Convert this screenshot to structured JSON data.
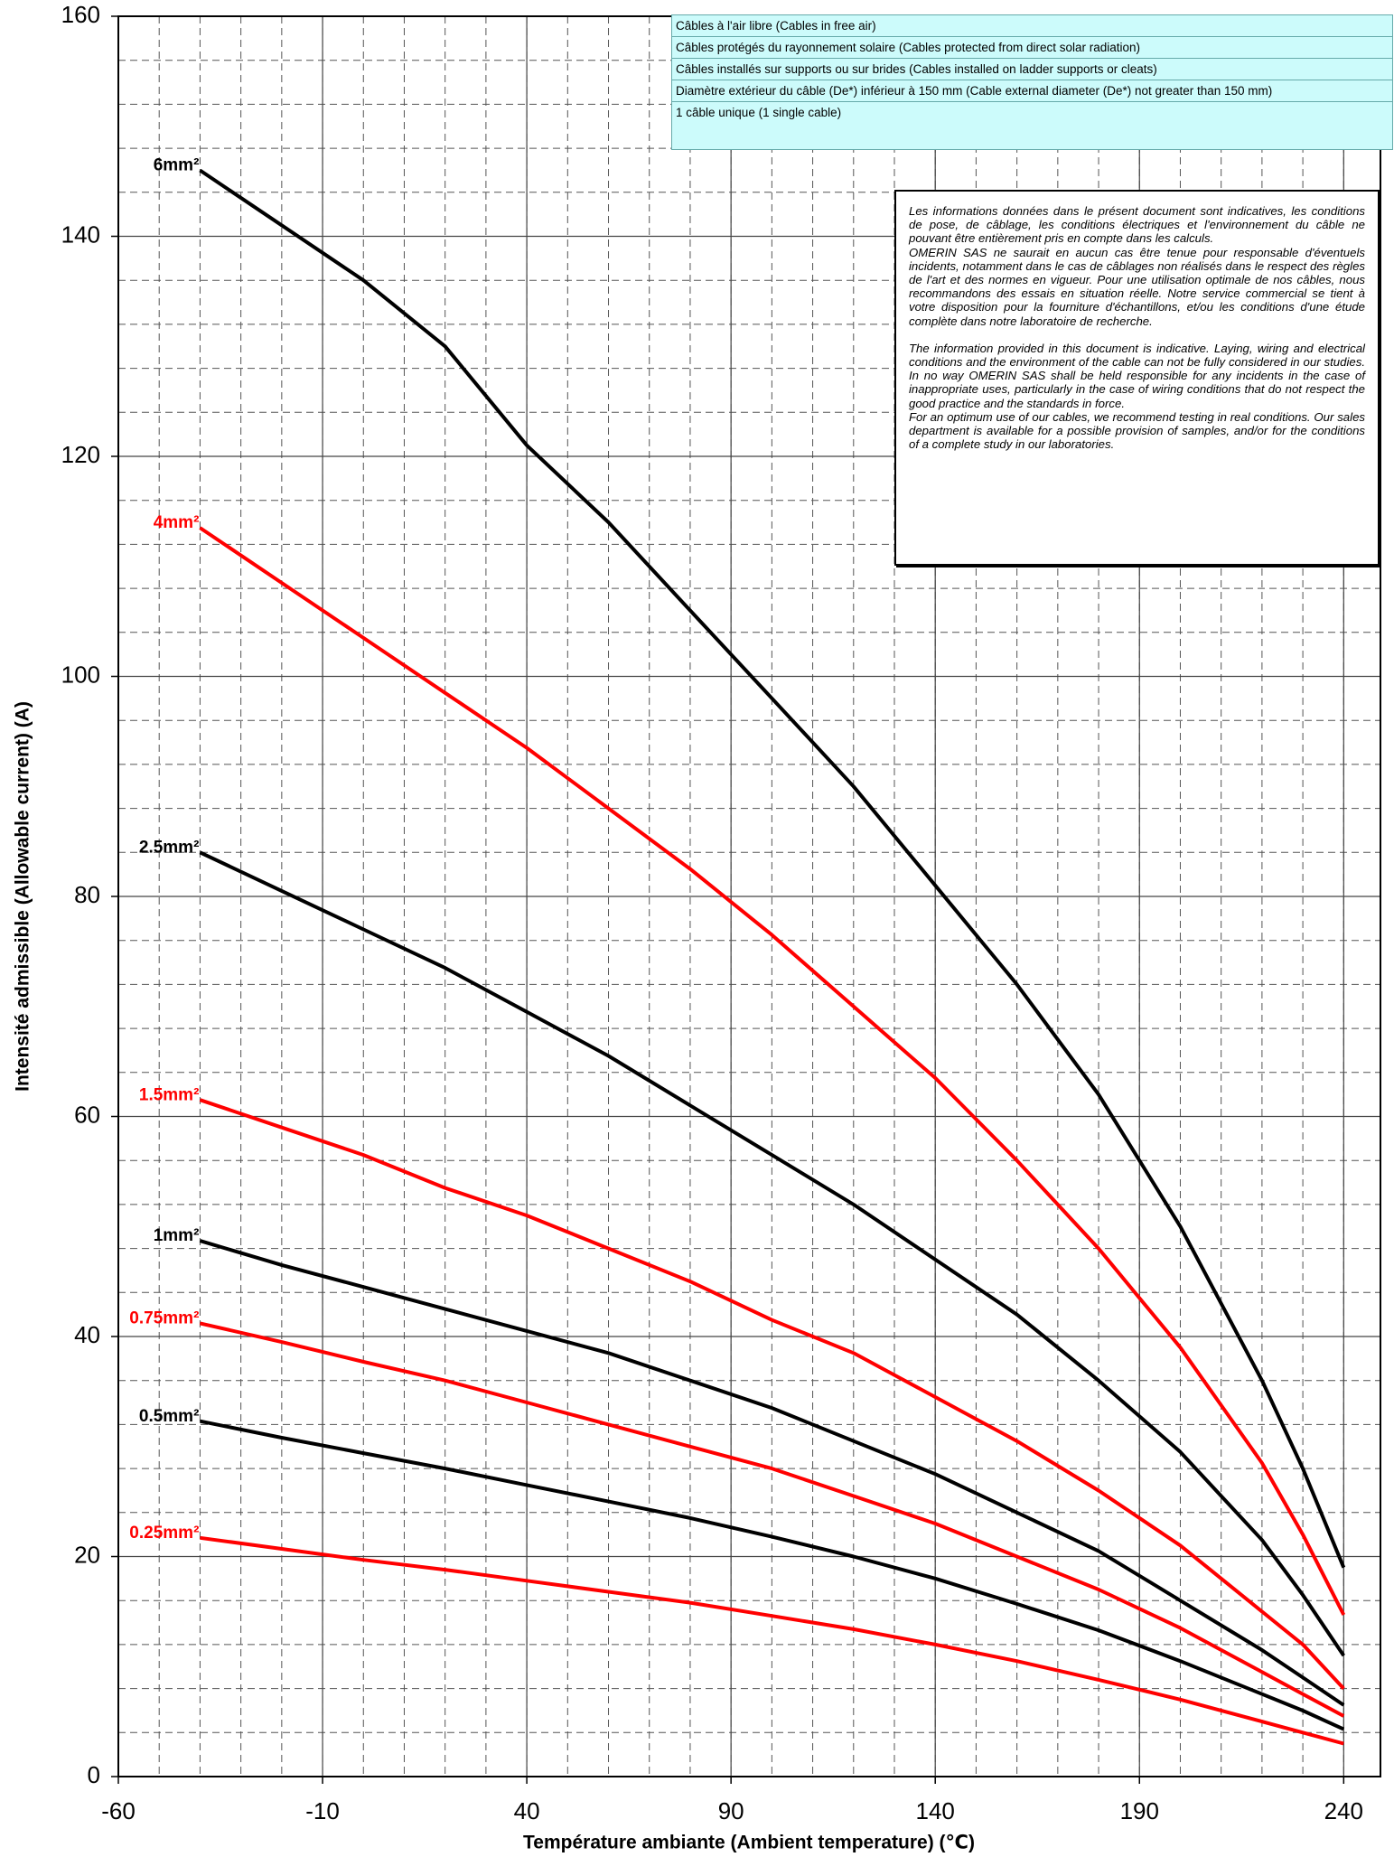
{
  "chart_data": {
    "type": "line",
    "x_label": "Température ambiante (Ambient temperature) (℃)",
    "y_label": "Intensité admissible (Allowable current) (A)",
    "xlim": [
      -60,
      249
    ],
    "ylim": [
      0,
      160
    ],
    "xticks": [
      -60,
      -10,
      40,
      90,
      140,
      190,
      240
    ],
    "yticks": [
      0,
      20,
      40,
      60,
      80,
      100,
      120,
      140,
      160
    ],
    "x_minor_step": 10,
    "y_minor_step": 4,
    "grid": true,
    "x": [
      -40,
      -20,
      0,
      20,
      40,
      60,
      80,
      100,
      120,
      140,
      160,
      180,
      200,
      220,
      230,
      240
    ],
    "series": [
      {
        "name": "6mm²",
        "color": "#000000",
        "values": [
          146,
          141,
          136,
          130,
          121,
          114,
          106,
          98,
          90,
          81,
          72,
          62,
          50,
          36,
          28,
          19
        ]
      },
      {
        "name": "4mm²",
        "color": "#ff0000",
        "values": [
          113.5,
          108.5,
          103.5,
          98.5,
          93.5,
          88,
          82.5,
          76.5,
          70,
          63.5,
          56,
          48,
          39,
          28.5,
          22,
          14.7
        ]
      },
      {
        "name": "2.5mm²",
        "color": "#000000",
        "values": [
          84,
          80.5,
          77,
          73.5,
          69.5,
          65.5,
          61,
          56.5,
          52,
          47,
          42,
          36,
          29.5,
          21.5,
          16.5,
          11
        ]
      },
      {
        "name": "1.5mm²",
        "color": "#ff0000",
        "values": [
          61.5,
          59,
          56.5,
          53.5,
          51,
          48,
          45,
          41.5,
          38.5,
          34.5,
          30.5,
          26,
          21,
          15,
          12,
          8
        ]
      },
      {
        "name": "1mm²",
        "color": "#000000",
        "values": [
          48.7,
          46.5,
          44.5,
          42.5,
          40.5,
          38.5,
          36,
          33.5,
          30.5,
          27.5,
          24,
          20.5,
          16,
          11.5,
          9,
          6.5
        ]
      },
      {
        "name": "0.75mm²",
        "color": "#ff0000",
        "values": [
          41.2,
          39.5,
          37.7,
          36,
          34,
          32,
          30,
          28,
          25.5,
          23,
          20,
          17,
          13.5,
          9.5,
          7.5,
          5.5
        ]
      },
      {
        "name": "0.5mm²",
        "color": "#000000",
        "values": [
          32.3,
          30.8,
          29.4,
          28,
          26.5,
          25,
          23.5,
          21.8,
          20,
          18,
          15.7,
          13.3,
          10.5,
          7.5,
          6,
          4.3
        ]
      },
      {
        "name": "0.25mm²",
        "color": "#ff0000",
        "values": [
          21.7,
          20.7,
          19.7,
          18.8,
          17.8,
          16.8,
          15.8,
          14.6,
          13.4,
          12,
          10.5,
          8.8,
          7,
          5,
          4,
          3
        ]
      }
    ],
    "conditions": [
      "Câbles à l'air libre (Cables in free air)",
      "Câbles protégés du rayonnement solaire (Cables protected from direct solar radiation)",
      "Câbles installés sur supports ou sur brides (Cables installed on ladder supports or cleats)",
      "Diamètre extérieur du câble (De*) inférieur à 150 mm (Cable external diameter (De*) not greater than 150 mm)",
      "1 câble unique (1 single cable)"
    ],
    "disclaimer": [
      "Les informations données dans le présent document sont indicatives, les conditions de pose, de câblage, les conditions électriques et l'environnement du câble ne pouvant être entièrement pris en compte dans les calculs.",
      "OMERIN SAS ne saurait en aucun cas être tenue pour responsable d'éventuels incidents, notamment dans le cas de câblages non réalisés dans le respect des règles de l'art et des normes en vigueur. Pour une utilisation optimale de nos câbles, nous recommandons des essais en situation réelle. Notre service commercial se tient à votre disposition pour la fourniture d'échantillons, et/ou les conditions d'une étude complète dans notre laboratoire de recherche.",
      "The information provided in this document is indicative. Laying, wiring and electrical conditions and the environment of the cable can not be fully considered in our studies. In no way OMERIN SAS shall be held responsible for any incidents in the case of inappropriate uses, particularly in the case of wiring conditions that do not respect the good practice and the standards in force.",
      "For an optimum use of our cables, we recommend testing in real conditions. Our sales department is available for a possible provision of samples, and/or for the conditions of a complete study in our laboratories."
    ]
  }
}
